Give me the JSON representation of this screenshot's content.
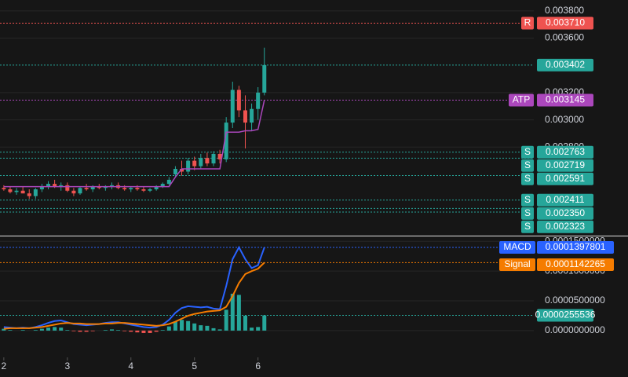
{
  "chart_data": [
    {
      "type": "candlestick",
      "x": [
        2.0,
        2.1,
        2.2,
        2.3,
        2.4,
        2.5,
        2.6,
        2.7,
        2.8,
        2.9,
        3.0,
        3.1,
        3.2,
        3.3,
        3.4,
        3.5,
        3.6,
        3.7,
        3.8,
        3.9,
        4.0,
        4.1,
        4.2,
        4.3,
        4.4,
        4.5,
        4.6,
        4.7,
        4.8,
        4.9,
        5.0,
        5.1,
        5.2,
        5.3,
        5.4,
        5.5,
        5.6,
        5.7,
        5.8,
        5.9,
        6.0,
        6.1
      ],
      "open": [
        0.0025,
        0.00249,
        0.00247,
        0.00248,
        0.00246,
        0.00244,
        0.00249,
        0.00251,
        0.00253,
        0.00251,
        0.00252,
        0.00248,
        0.00246,
        0.0025,
        0.00249,
        0.00251,
        0.0025,
        0.00251,
        0.00252,
        0.0025,
        0.00249,
        0.0025,
        0.00249,
        0.00248,
        0.00249,
        0.00251,
        0.00253,
        0.0026,
        0.00264,
        0.00262,
        0.0027,
        0.00266,
        0.00272,
        0.00268,
        0.00275,
        0.00271,
        0.00298,
        0.00322,
        0.00307,
        0.00298,
        0.00308,
        0.0032
      ],
      "high": [
        0.00252,
        0.00251,
        0.0025,
        0.00251,
        0.00249,
        0.0025,
        0.00253,
        0.00255,
        0.00256,
        0.00254,
        0.00254,
        0.0025,
        0.00251,
        0.00253,
        0.00252,
        0.00253,
        0.00252,
        0.00254,
        0.00254,
        0.00252,
        0.00251,
        0.00252,
        0.00251,
        0.0025,
        0.00252,
        0.00254,
        0.00258,
        0.00266,
        0.0027,
        0.00272,
        0.00273,
        0.00275,
        0.00276,
        0.00277,
        0.00278,
        0.00302,
        0.00328,
        0.00325,
        0.00318,
        0.00312,
        0.00324,
        0.00353
      ],
      "low": [
        0.00248,
        0.00246,
        0.00245,
        0.00246,
        0.00242,
        0.00242,
        0.00247,
        0.00249,
        0.0025,
        0.00248,
        0.00247,
        0.00244,
        0.00245,
        0.00248,
        0.00247,
        0.00249,
        0.00248,
        0.00249,
        0.00249,
        0.00248,
        0.00247,
        0.00248,
        0.00247,
        0.00247,
        0.00248,
        0.0025,
        0.00252,
        0.00258,
        0.00259,
        0.0026,
        0.00263,
        0.00264,
        0.00266,
        0.00266,
        0.00268,
        0.00269,
        0.00294,
        0.00302,
        0.00279,
        0.00292,
        0.003,
        0.00318
      ],
      "close": [
        0.00249,
        0.00247,
        0.00248,
        0.00246,
        0.00244,
        0.00249,
        0.00251,
        0.00253,
        0.00251,
        0.00252,
        0.00248,
        0.00246,
        0.0025,
        0.00249,
        0.00251,
        0.0025,
        0.00251,
        0.00252,
        0.0025,
        0.00249,
        0.0025,
        0.00249,
        0.00248,
        0.00249,
        0.00251,
        0.00253,
        0.00256,
        0.00264,
        0.00262,
        0.0027,
        0.00266,
        0.00272,
        0.00268,
        0.00275,
        0.00271,
        0.00298,
        0.00322,
        0.00307,
        0.00298,
        0.00308,
        0.0032,
        0.003402
      ],
      "up_color": "#26a69a",
      "down_color": "#ef5350",
      "series": [
        {
          "name": "ATP",
          "color": "#ab47bc",
          "values": [
            0.00251,
            0.00251,
            0.00251,
            0.00251,
            0.00251,
            0.00251,
            0.00251,
            0.00251,
            0.00251,
            0.00251,
            0.00251,
            0.00251,
            0.00251,
            0.00251,
            0.00251,
            0.00251,
            0.00251,
            0.00251,
            0.00251,
            0.00251,
            0.00251,
            0.00251,
            0.00251,
            0.00251,
            0.00251,
            0.00251,
            0.00251,
            0.00258,
            0.00264,
            0.00264,
            0.00264,
            0.00264,
            0.00264,
            0.00264,
            0.00264,
            0.00291,
            0.00291,
            0.00291,
            0.00292,
            0.00292,
            0.00293,
            0.003145
          ]
        }
      ],
      "levels": [
        {
          "tag": "R",
          "value": 0.00371,
          "label": "0.003710",
          "color": "#ef5350"
        },
        {
          "value": 0.003402,
          "label": "0.003402",
          "color": "#26a69a"
        },
        {
          "tag": "ATP",
          "value": 0.003145,
          "label": "0.003145",
          "color": "#ab47bc"
        },
        {
          "tag": "S",
          "value": 0.002763,
          "label": "0.002763",
          "color": "#26a69a"
        },
        {
          "tag": "S",
          "value": 0.002719,
          "label": "0.002719",
          "color": "#26a69a"
        },
        {
          "tag": "S",
          "value": 0.002591,
          "label": "0.002591",
          "color": "#26a69a"
        },
        {
          "tag": "S",
          "value": 0.002411,
          "label": "0.002411",
          "color": "#26a69a"
        },
        {
          "tag": "S",
          "value": 0.00235,
          "label": "0.002350",
          "color": "#26a69a"
        },
        {
          "tag": "S",
          "value": 0.002323,
          "label": "0.002323",
          "color": "#26a69a"
        }
      ],
      "xlim": [
        1.94,
        10.34
      ],
      "xticks": [
        2,
        3,
        4,
        5,
        6
      ],
      "ylim": [
        0.00215,
        0.00388
      ],
      "yticks": [
        {
          "value": 0.0028,
          "label": "0.002800"
        },
        {
          "value": 0.003,
          "label": "0.003000"
        },
        {
          "value": 0.0032,
          "label": "0.003200"
        },
        {
          "value": 0.0036,
          "label": "0.003600"
        },
        {
          "value": 0.0038,
          "label": "0.003800"
        }
      ]
    },
    {
      "type": "macd",
      "series": [
        {
          "name": "MACD",
          "color": "#2962ff",
          "last_label": "0.0001397801",
          "values": [
            6e-06,
            5e-06,
            4e-06,
            5e-06,
            4e-06,
            6e-06,
            9e-06,
            1.3e-05,
            1.6e-05,
            1.7e-05,
            1.4e-05,
            1.1e-05,
            1e-05,
            9e-06,
            1e-05,
            1.1e-05,
            1.3e-05,
            1.4e-05,
            1.4e-05,
            1.2e-05,
            1e-05,
            8e-06,
            6e-06,
            5e-06,
            6e-06,
            1e-05,
            1.8e-05,
            3e-05,
            3.8e-05,
            4.1e-05,
            4e-05,
            3.9e-05,
            4e-05,
            3.7e-05,
            3.6e-05,
            7.5e-05,
            0.00012,
            0.00014,
            0.00012,
            0.000105,
            0.00011,
            0.0001397801
          ]
        },
        {
          "name": "Signal",
          "color": "#f57c00",
          "last_label": "0.0001142265",
          "values": [
            3e-06,
            4e-06,
            4e-06,
            4e-06,
            4e-06,
            5e-06,
            6e-06,
            8e-06,
            1e-05,
            1.2e-05,
            1.3e-05,
            1.2e-05,
            1.2e-05,
            1.1e-05,
            1.1e-05,
            1.1e-05,
            1.2e-05,
            1.2e-05,
            1.3e-05,
            1.3e-05,
            1.2e-05,
            1.1e-05,
            1e-05,
            9e-06,
            8e-06,
            9e-06,
            1.1e-05,
            1.5e-05,
            2e-05,
            2.5e-05,
            2.8e-05,
            3e-05,
            3.2e-05,
            3.3e-05,
            3.4e-05,
            4e-05,
            5.8e-05,
            8e-05,
            9.5e-05,
            0.0001,
            0.000104,
            0.0001142265
          ]
        }
      ],
      "histogram": {
        "color": "#26a69a",
        "negative_color": "#ef5350",
        "last_label": "0.0000255536",
        "values": [
          3e-06,
          1e-06,
          0,
          1e-06,
          0,
          1e-06,
          3e-06,
          5e-06,
          6e-06,
          5e-06,
          1e-06,
          -1e-06,
          -2e-06,
          -2e-06,
          -1e-06,
          0,
          1e-06,
          2e-06,
          1e-06,
          -1e-06,
          -2e-06,
          -3e-06,
          -4e-06,
          -4e-06,
          -2e-06,
          1e-06,
          7e-06,
          1.5e-05,
          1.8e-05,
          1.6e-05,
          1.2e-05,
          9e-06,
          8e-06,
          4e-06,
          2e-06,
          3.5e-05,
          6.2e-05,
          6e-05,
          2.5e-05,
          5e-06,
          6e-06,
          2.55536e-05
        ]
      },
      "ylim": [
        -4.5e-05,
        0.000157
      ],
      "yticks": [
        {
          "value": 0,
          "label": "0.0000000000"
        },
        {
          "value": 5e-05,
          "label": "0.0000500000"
        },
        {
          "value": 0.0001,
          "label": "0.0001000000"
        },
        {
          "value": 0.00015,
          "label": "0.0001500000"
        }
      ]
    }
  ]
}
